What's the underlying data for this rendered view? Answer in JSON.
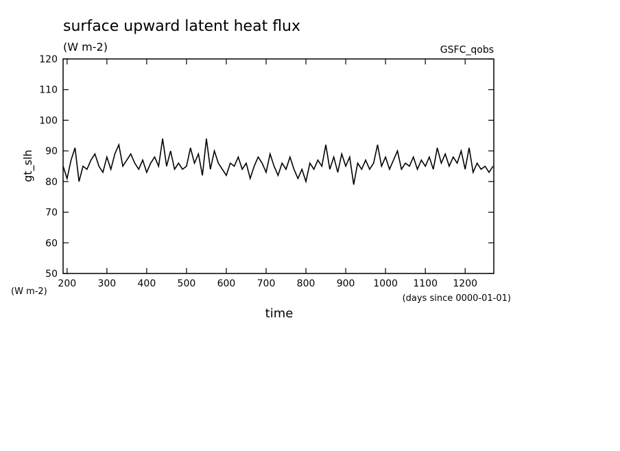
{
  "chart_data": {
    "type": "line",
    "title": "surface upward latent heat flux",
    "subtitle": "(W m-2)",
    "annotation": "GSFC_qobs",
    "ylabel": "gt_slh",
    "yunit": "(W m-2)",
    "xlabel": "time",
    "xunit": "(days since 0000-01-01)",
    "xlim": [
      190,
      1272
    ],
    "xticks": [
      200,
      300,
      400,
      500,
      600,
      700,
      800,
      900,
      1000,
      1100,
      1200
    ],
    "ylim": [
      50,
      120
    ],
    "yticks": [
      50,
      60,
      70,
      80,
      90,
      100,
      110,
      120
    ],
    "color": "#000000",
    "x": [
      190,
      200,
      210,
      220,
      230,
      240,
      250,
      260,
      270,
      280,
      290,
      300,
      310,
      320,
      330,
      340,
      350,
      360,
      370,
      380,
      390,
      400,
      410,
      420,
      430,
      440,
      450,
      460,
      470,
      480,
      490,
      500,
      510,
      520,
      530,
      540,
      550,
      560,
      570,
      580,
      590,
      600,
      610,
      620,
      630,
      640,
      650,
      660,
      670,
      680,
      690,
      700,
      710,
      720,
      730,
      740,
      750,
      760,
      770,
      780,
      790,
      800,
      810,
      820,
      830,
      840,
      850,
      860,
      870,
      880,
      890,
      900,
      910,
      920,
      930,
      940,
      950,
      960,
      970,
      980,
      990,
      1000,
      1010,
      1020,
      1030,
      1040,
      1050,
      1060,
      1070,
      1080,
      1090,
      1100,
      1110,
      1120,
      1130,
      1140,
      1150,
      1160,
      1170,
      1180,
      1190,
      1200,
      1210,
      1220,
      1230,
      1240,
      1250,
      1260,
      1270
    ],
    "values": [
      85,
      81,
      87,
      91,
      80,
      85,
      84,
      87,
      89,
      85,
      83,
      88,
      84,
      89,
      92,
      85,
      87,
      89,
      86,
      84,
      87,
      83,
      86,
      88,
      85,
      94,
      85,
      90,
      84,
      86,
      84,
      85,
      91,
      86,
      89,
      82,
      94,
      84,
      90,
      86,
      84,
      82,
      86,
      85,
      88,
      84,
      86,
      81,
      85,
      88,
      86,
      83,
      89,
      85,
      82,
      86,
      84,
      88,
      84,
      81,
      84,
      80,
      86,
      84,
      87,
      85,
      92,
      84,
      88,
      83,
      89,
      85,
      88,
      79,
      86,
      84,
      87,
      84,
      86,
      92,
      85,
      88,
      84,
      87,
      90,
      84,
      86,
      85,
      88,
      84,
      87,
      85,
      88,
      84,
      91,
      86,
      89,
      85,
      88,
      86,
      90,
      84,
      91,
      83,
      86,
      84,
      85,
      83,
      85
    ]
  }
}
